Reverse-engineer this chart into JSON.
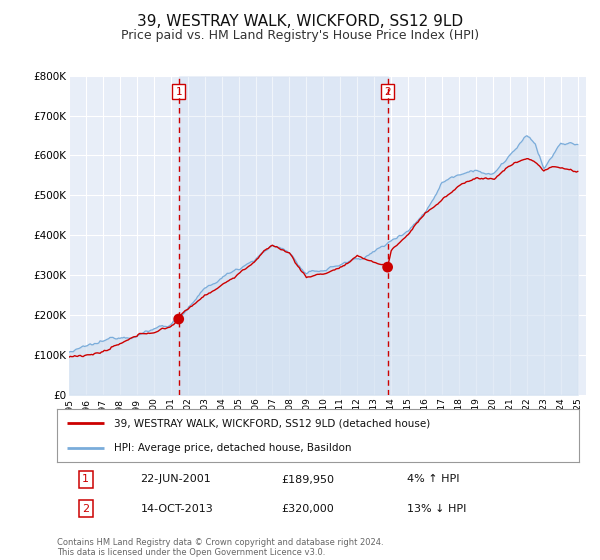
{
  "title": "39, WESTRAY WALK, WICKFORD, SS12 9LD",
  "subtitle": "Price paid vs. HM Land Registry's House Price Index (HPI)",
  "title_fontsize": 11,
  "subtitle_fontsize": 9,
  "background_color": "#ffffff",
  "plot_bg_color": "#e8eef8",
  "grid_color": "#ffffff",
  "ylim": [
    0,
    800000
  ],
  "yticks": [
    0,
    100000,
    200000,
    300000,
    400000,
    500000,
    600000,
    700000,
    800000
  ],
  "ytick_labels": [
    "£0",
    "£100K",
    "£200K",
    "£300K",
    "£400K",
    "£500K",
    "£600K",
    "£700K",
    "£800K"
  ],
  "xlim_start": 1995.0,
  "xlim_end": 2025.5,
  "xtick_years": [
    1995,
    1996,
    1997,
    1998,
    1999,
    2000,
    2001,
    2002,
    2003,
    2004,
    2005,
    2006,
    2007,
    2008,
    2009,
    2010,
    2011,
    2012,
    2013,
    2014,
    2015,
    2016,
    2017,
    2018,
    2019,
    2020,
    2021,
    2022,
    2023,
    2024,
    2025
  ],
  "sale1_x": 2001.47,
  "sale1_y": 189950,
  "sale1_label": "1",
  "sale2_x": 2013.79,
  "sale2_y": 320000,
  "sale2_label": "2",
  "sale_dot_color": "#cc0000",
  "sale_dot_size": 60,
  "vline_color": "#cc0000",
  "legend_line1_label": "39, WESTRAY WALK, WICKFORD, SS12 9LD (detached house)",
  "legend_line2_label": "HPI: Average price, detached house, Basildon",
  "red_line_color": "#cc0000",
  "blue_line_color": "#7aacda",
  "blue_fill_color": "#d0dff0",
  "annotation1_date": "22-JUN-2001",
  "annotation1_price": "£189,950",
  "annotation1_hpi": "4% ↑ HPI",
  "annotation2_date": "14-OCT-2013",
  "annotation2_price": "£320,000",
  "annotation2_hpi": "13% ↓ HPI",
  "footer_text": "Contains HM Land Registry data © Crown copyright and database right 2024.\nThis data is licensed under the Open Government Licence v3.0."
}
